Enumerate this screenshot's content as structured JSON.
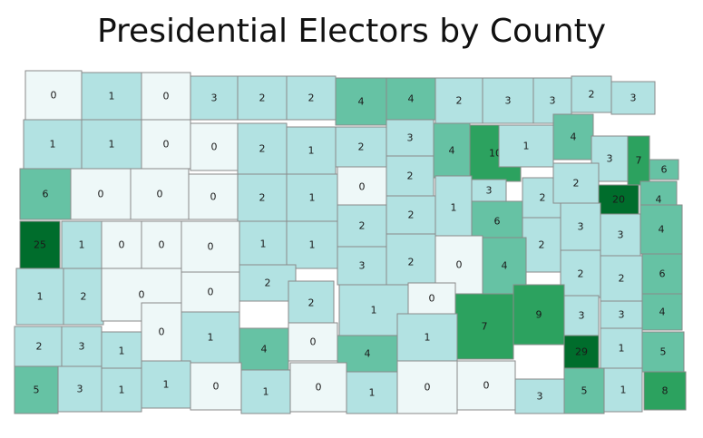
{
  "title": "Presidential Electors by County",
  "color_scale": {
    "0": "#eef8f8",
    "1": "#b2e2e2",
    "2": "#b2e2e2",
    "3": "#b2e2e2",
    "4": "#66c2a4",
    "5": "#66c2a4",
    "6": "#66c2a4",
    "7": "#2ca25f",
    "8": "#2ca25f",
    "9": "#2ca25f",
    "10": "#2ca25f",
    "20": "#006d2c",
    "25": "#006d2c",
    "29": "#006d2c"
  },
  "counties": [
    {
      "value": 0
    },
    {
      "value": 1
    },
    {
      "value": 0
    },
    {
      "value": 3
    },
    {
      "value": 2
    },
    {
      "value": 2
    },
    {
      "value": 4
    },
    {
      "value": 4
    },
    {
      "value": 2
    },
    {
      "value": 3
    },
    {
      "value": 3
    },
    {
      "value": 2
    },
    {
      "value": 3
    },
    {
      "value": 1
    },
    {
      "value": 1
    },
    {
      "value": 0
    },
    {
      "value": 0
    },
    {
      "value": 2
    },
    {
      "value": 1
    },
    {
      "value": 2
    },
    {
      "value": 3
    },
    {
      "value": 4
    },
    {
      "value": 10
    },
    {
      "value": 1
    },
    {
      "value": 4
    },
    {
      "value": 3
    },
    {
      "value": 7
    },
    {
      "value": 6
    },
    {
      "value": 6
    },
    {
      "value": 0
    },
    {
      "value": 0
    },
    {
      "value": 0
    },
    {
      "value": 2
    },
    {
      "value": 1
    },
    {
      "value": 0
    },
    {
      "value": 2
    },
    {
      "value": 1
    },
    {
      "value": 3
    },
    {
      "value": 2
    },
    {
      "value": 2
    },
    {
      "value": 20
    },
    {
      "value": 4
    },
    {
      "value": 25
    },
    {
      "value": 1
    },
    {
      "value": 0
    },
    {
      "value": 0
    },
    {
      "value": 0
    },
    {
      "value": 1
    },
    {
      "value": 1
    },
    {
      "value": 2
    },
    {
      "value": 2
    },
    {
      "value": 6
    },
    {
      "value": 2
    },
    {
      "value": 3
    },
    {
      "value": 3
    },
    {
      "value": 4
    },
    {
      "value": 1
    },
    {
      "value": 2
    },
    {
      "value": 0
    },
    {
      "value": 0
    },
    {
      "value": 2
    },
    {
      "value": 2
    },
    {
      "value": 3
    },
    {
      "value": 2
    },
    {
      "value": 0
    },
    {
      "value": 4
    },
    {
      "value": 6
    },
    {
      "value": 2
    },
    {
      "value": 6
    },
    {
      "value": 2
    },
    {
      "value": 1
    },
    {
      "value": 0
    },
    {
      "value": 7
    },
    {
      "value": 9
    },
    {
      "value": 3
    },
    {
      "value": 3
    },
    {
      "value": 4
    },
    {
      "value": 2
    },
    {
      "value": 3
    },
    {
      "value": 1
    },
    {
      "value": 0
    },
    {
      "value": 1
    },
    {
      "value": 4
    },
    {
      "value": 0
    },
    {
      "value": 4
    },
    {
      "value": 1
    },
    {
      "value": 29
    },
    {
      "value": 1
    },
    {
      "value": 5
    },
    {
      "value": 5
    },
    {
      "value": 3
    },
    {
      "value": 1
    },
    {
      "value": 1
    },
    {
      "value": 0
    },
    {
      "value": 1
    },
    {
      "value": 0
    },
    {
      "value": 1
    },
    {
      "value": 0
    },
    {
      "value": 0
    },
    {
      "value": 3
    },
    {
      "value": 5
    },
    {
      "value": 1
    },
    {
      "value": 8
    },
    {
      "value": 1
    },
    {
      "value": 2
    }
  ]
}
